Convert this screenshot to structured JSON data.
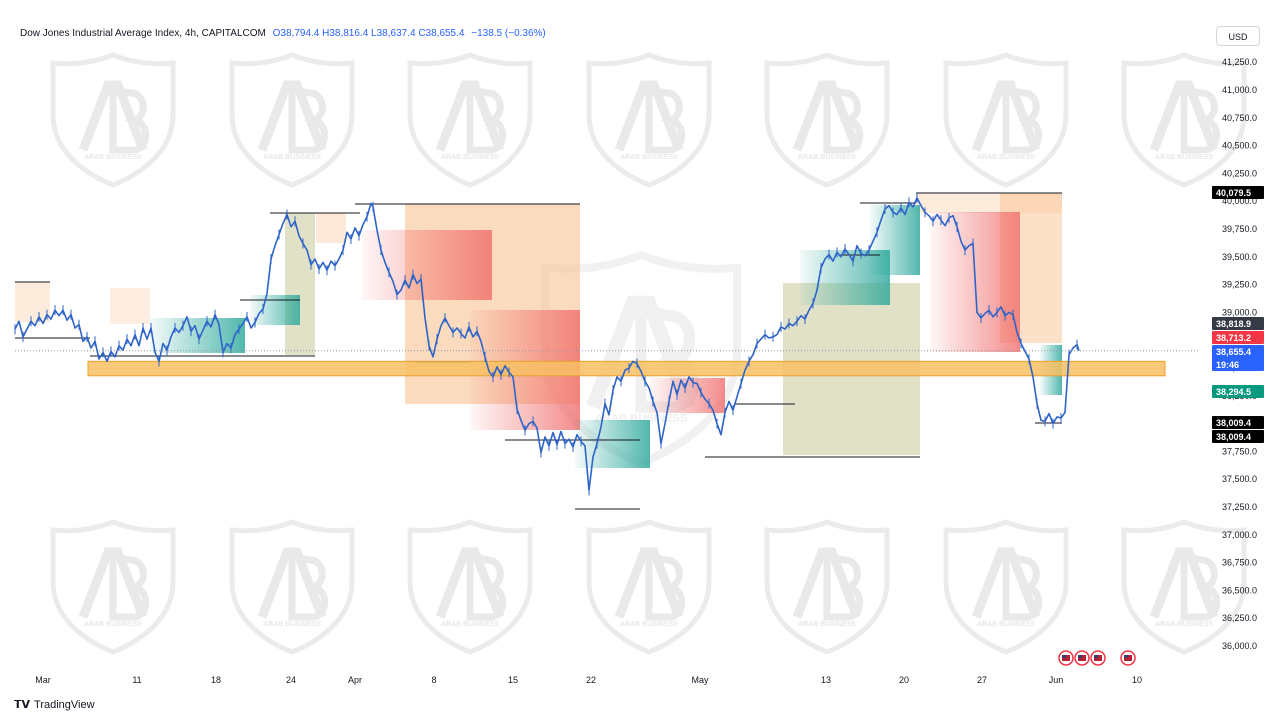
{
  "header": {
    "symbol": "Dow Jones Industrial Average Index, 4h, CAPITALCOM",
    "ohlc": "O38,794.4 H38,816.4 L38,637.4 C38,655.4",
    "change": "−138.5 (−0.36%)"
  },
  "currency_button": "USD",
  "brand": {
    "icon": "tradingview-logo-icon",
    "name": "TradingView"
  },
  "watermark": {
    "text": "ARAB BUSINESS",
    "icon": "ab-shield-logo"
  },
  "colors": {
    "price_line": "#2e64c8",
    "zone": "#f7c064",
    "supply": "#f9c79a",
    "demand": "#c9c99a",
    "bear_fill": "#f06464",
    "bull_fill": "#26a69a"
  },
  "chart_data": {
    "type": "line",
    "title": "Dow Jones Industrial Average Index, 4h, CAPITALCOM",
    "xlabel": "",
    "ylabel": "",
    "x_ticks": [
      "Mar",
      "11",
      "18",
      "24",
      "Apr",
      "8",
      "15",
      "22",
      "May",
      "13",
      "20",
      "27",
      "Jun",
      "10"
    ],
    "y_ticks": [
      "41,250.0",
      "41,000.0",
      "40,750.0",
      "40,500.0",
      "40,250.0",
      "40,000.0",
      "39,750.0",
      "39,500.0",
      "39,250.0",
      "39,000.0",
      "38,750.0",
      "38,500.0",
      "38,250.0",
      "38,000.0",
      "37,750.0",
      "37,500.0",
      "37,250.0",
      "37,000.0",
      "36,750.0",
      "36,500.0",
      "36,250.0",
      "36,000.0"
    ],
    "ylim": [
      35950,
      41350
    ],
    "grid": false,
    "series": [
      {
        "values": [
          [
            0,
            38850
          ],
          [
            4,
            38920
          ],
          [
            8,
            38780
          ],
          [
            12,
            38850
          ],
          [
            16,
            38920
          ],
          [
            20,
            38880
          ],
          [
            24,
            38960
          ],
          [
            28,
            38900
          ],
          [
            32,
            38980
          ],
          [
            36,
            38940
          ],
          [
            40,
            39020
          ],
          [
            44,
            38970
          ],
          [
            48,
            39020
          ],
          [
            52,
            38930
          ],
          [
            56,
            38980
          ],
          [
            60,
            38860
          ],
          [
            64,
            38890
          ],
          [
            68,
            38740
          ],
          [
            72,
            38780
          ],
          [
            76,
            38680
          ],
          [
            80,
            38740
          ],
          [
            84,
            38580
          ],
          [
            88,
            38640
          ],
          [
            92,
            38560
          ],
          [
            96,
            38650
          ],
          [
            100,
            38600
          ],
          [
            104,
            38700
          ],
          [
            108,
            38660
          ],
          [
            112,
            38760
          ],
          [
            116,
            38700
          ],
          [
            120,
            38800
          ],
          [
            124,
            38700
          ],
          [
            128,
            38860
          ],
          [
            132,
            38760
          ],
          [
            136,
            38860
          ],
          [
            140,
            38640
          ],
          [
            144,
            38560
          ],
          [
            148,
            38720
          ],
          [
            152,
            38660
          ],
          [
            156,
            38780
          ],
          [
            160,
            38860
          ],
          [
            164,
            38820
          ],
          [
            168,
            38880
          ],
          [
            172,
            38960
          ],
          [
            176,
            38830
          ],
          [
            180,
            38880
          ],
          [
            184,
            38760
          ],
          [
            188,
            38840
          ],
          [
            192,
            38920
          ],
          [
            196,
            38870
          ],
          [
            200,
            38980
          ],
          [
            204,
            38890
          ],
          [
            208,
            38640
          ],
          [
            212,
            38720
          ],
          [
            216,
            38680
          ],
          [
            220,
            38800
          ],
          [
            224,
            38850
          ],
          [
            228,
            38900
          ],
          [
            232,
            38960
          ],
          [
            236,
            38860
          ],
          [
            240,
            38910
          ],
          [
            244,
            38990
          ],
          [
            248,
            39030
          ],
          [
            252,
            39170
          ],
          [
            256,
            39480
          ],
          [
            260,
            39600
          ],
          [
            264,
            39700
          ],
          [
            268,
            39800
          ],
          [
            272,
            39880
          ],
          [
            276,
            39770
          ],
          [
            280,
            39820
          ],
          [
            284,
            39690
          ],
          [
            288,
            39620
          ],
          [
            292,
            39560
          ],
          [
            296,
            39430
          ],
          [
            300,
            39480
          ],
          [
            304,
            39390
          ],
          [
            308,
            39450
          ],
          [
            312,
            39380
          ],
          [
            316,
            39460
          ],
          [
            320,
            39420
          ],
          [
            324,
            39480
          ],
          [
            328,
            39560
          ],
          [
            332,
            39720
          ],
          [
            336,
            39660
          ],
          [
            340,
            39760
          ],
          [
            344,
            39690
          ],
          [
            348,
            39790
          ],
          [
            352,
            39860
          ],
          [
            356,
            39980
          ],
          [
            358,
            39950
          ],
          [
            362,
            39740
          ],
          [
            366,
            39560
          ],
          [
            370,
            39450
          ],
          [
            374,
            39360
          ],
          [
            378,
            39280
          ],
          [
            382,
            39160
          ],
          [
            386,
            39200
          ],
          [
            390,
            39290
          ],
          [
            394,
            39220
          ],
          [
            398,
            39340
          ],
          [
            402,
            39260
          ],
          [
            406,
            39300
          ],
          [
            410,
            38950
          ],
          [
            414,
            38700
          ],
          [
            418,
            38600
          ],
          [
            422,
            38760
          ],
          [
            426,
            38880
          ],
          [
            430,
            38950
          ],
          [
            434,
            38880
          ],
          [
            438,
            38820
          ],
          [
            442,
            38860
          ],
          [
            446,
            38810
          ],
          [
            450,
            38770
          ],
          [
            454,
            38870
          ],
          [
            458,
            38780
          ],
          [
            462,
            38830
          ],
          [
            466,
            38740
          ],
          [
            470,
            38600
          ],
          [
            474,
            38470
          ],
          [
            478,
            38420
          ],
          [
            482,
            38510
          ],
          [
            486,
            38440
          ],
          [
            490,
            38520
          ],
          [
            494,
            38460
          ],
          [
            498,
            38420
          ],
          [
            502,
            38130
          ],
          [
            506,
            38030
          ],
          [
            510,
            37940
          ],
          [
            514,
            38000
          ],
          [
            518,
            38020
          ],
          [
            522,
            37960
          ],
          [
            526,
            37740
          ],
          [
            530,
            37880
          ],
          [
            534,
            37800
          ],
          [
            538,
            37920
          ],
          [
            542,
            37810
          ],
          [
            546,
            37930
          ],
          [
            550,
            37820
          ],
          [
            554,
            37860
          ],
          [
            558,
            37790
          ],
          [
            562,
            37900
          ],
          [
            566,
            37840
          ],
          [
            570,
            37800
          ],
          [
            574,
            37400
          ],
          [
            578,
            37700
          ],
          [
            582,
            37820
          ],
          [
            586,
            37970
          ],
          [
            590,
            38180
          ],
          [
            594,
            38080
          ],
          [
            598,
            38300
          ],
          [
            602,
            38420
          ],
          [
            606,
            38380
          ],
          [
            610,
            38480
          ],
          [
            614,
            38500
          ],
          [
            618,
            38560
          ],
          [
            622,
            38540
          ],
          [
            626,
            38470
          ],
          [
            630,
            38380
          ],
          [
            634,
            38320
          ],
          [
            638,
            38200
          ],
          [
            642,
            38100
          ],
          [
            646,
            37820
          ],
          [
            650,
            38000
          ],
          [
            654,
            38200
          ],
          [
            658,
            38380
          ],
          [
            662,
            38260
          ],
          [
            666,
            38390
          ],
          [
            670,
            38320
          ],
          [
            674,
            38420
          ],
          [
            678,
            38370
          ],
          [
            682,
            38360
          ],
          [
            686,
            38280
          ],
          [
            690,
            38220
          ],
          [
            694,
            38180
          ],
          [
            698,
            38120
          ],
          [
            702,
            38000
          ],
          [
            706,
            37900
          ],
          [
            710,
            38100
          ],
          [
            714,
            38200
          ],
          [
            718,
            38120
          ],
          [
            722,
            38240
          ],
          [
            726,
            38360
          ],
          [
            730,
            38480
          ],
          [
            734,
            38560
          ],
          [
            738,
            38620
          ],
          [
            742,
            38720
          ],
          [
            746,
            38760
          ],
          [
            750,
            38800
          ],
          [
            754,
            38770
          ],
          [
            758,
            38780
          ],
          [
            762,
            38800
          ],
          [
            766,
            38870
          ],
          [
            770,
            38850
          ],
          [
            774,
            38900
          ],
          [
            778,
            38880
          ],
          [
            782,
            38920
          ],
          [
            786,
            38970
          ],
          [
            790,
            38940
          ],
          [
            794,
            39020
          ],
          [
            798,
            39080
          ],
          [
            802,
            39200
          ],
          [
            806,
            39400
          ],
          [
            810,
            39480
          ],
          [
            814,
            39520
          ],
          [
            818,
            39460
          ],
          [
            822,
            39540
          ],
          [
            826,
            39500
          ],
          [
            830,
            39570
          ],
          [
            834,
            39520
          ],
          [
            838,
            39460
          ],
          [
            842,
            39600
          ],
          [
            846,
            39530
          ],
          [
            850,
            39510
          ],
          [
            854,
            39560
          ],
          [
            858,
            39640
          ],
          [
            862,
            39720
          ],
          [
            866,
            39830
          ],
          [
            870,
            39930
          ],
          [
            874,
            39960
          ],
          [
            878,
            39900
          ],
          [
            882,
            39880
          ],
          [
            886,
            39940
          ],
          [
            890,
            39880
          ],
          [
            894,
            39990
          ],
          [
            898,
            39950
          ],
          [
            902,
            40030
          ],
          [
            906,
            39960
          ],
          [
            910,
            39900
          ],
          [
            914,
            39870
          ],
          [
            918,
            39820
          ],
          [
            922,
            39880
          ],
          [
            926,
            39830
          ],
          [
            930,
            39780
          ],
          [
            934,
            39850
          ],
          [
            938,
            39870
          ],
          [
            942,
            39770
          ],
          [
            946,
            39640
          ],
          [
            950,
            39560
          ],
          [
            954,
            39600
          ],
          [
            958,
            39620
          ],
          [
            962,
            39000
          ],
          [
            966,
            38950
          ],
          [
            970,
            38990
          ],
          [
            974,
            39020
          ],
          [
            978,
            38960
          ],
          [
            982,
            39000
          ],
          [
            986,
            39050
          ],
          [
            990,
            38970
          ],
          [
            994,
            39000
          ],
          [
            998,
            38980
          ],
          [
            1002,
            38820
          ],
          [
            1006,
            38720
          ],
          [
            1010,
            38650
          ],
          [
            1014,
            38580
          ],
          [
            1018,
            38420
          ],
          [
            1022,
            38180
          ],
          [
            1026,
            38030
          ],
          [
            1030,
            38020
          ],
          [
            1034,
            38090
          ],
          [
            1038,
            38000
          ],
          [
            1042,
            38060
          ],
          [
            1046,
            38050
          ],
          [
            1050,
            38100
          ],
          [
            1054,
            38620
          ],
          [
            1058,
            38680
          ],
          [
            1062,
            38710
          ],
          [
            1064,
            38655
          ]
        ]
      }
    ],
    "zones": [
      {
        "kind": "support",
        "y_range": [
          38430,
          38560
        ]
      }
    ],
    "price_tags": [
      {
        "value": "40,079.5",
        "color": "#000000"
      },
      {
        "value": "38,818.9",
        "color": "#363a45"
      },
      {
        "value": "38,713.2",
        "color": "#f23645"
      },
      {
        "value": "38,655.4",
        "sub": "19:46",
        "color": "#2962ff"
      },
      {
        "value": "38,294.5",
        "color": "#089981"
      },
      {
        "value": "38,009.4",
        "color": "#000000"
      },
      {
        "value": "38,009.4",
        "color": "#000000"
      }
    ]
  }
}
